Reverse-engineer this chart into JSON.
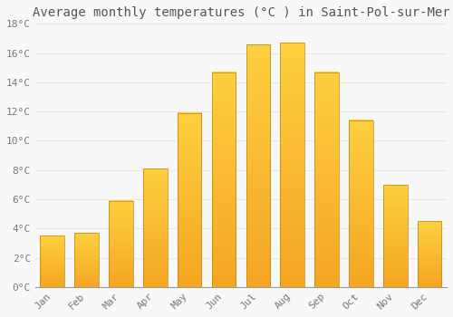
{
  "title": "Average monthly temperatures (°C ) in Saint-Pol-sur-Mer",
  "months": [
    "Jan",
    "Feb",
    "Mar",
    "Apr",
    "May",
    "Jun",
    "Jul",
    "Aug",
    "Sep",
    "Oct",
    "Nov",
    "Dec"
  ],
  "values": [
    3.5,
    3.7,
    5.9,
    8.1,
    11.9,
    14.7,
    16.6,
    16.7,
    14.7,
    11.4,
    7.0,
    4.5
  ],
  "bar_color_bottom": "#F5A623",
  "bar_color_top": "#FFD040",
  "bar_edge_color": "#B8860B",
  "ylim": [
    0,
    18
  ],
  "yticks": [
    0,
    2,
    4,
    6,
    8,
    10,
    12,
    14,
    16,
    18
  ],
  "ytick_labels": [
    "0°C",
    "2°C",
    "4°C",
    "6°C",
    "8°C",
    "10°C",
    "12°C",
    "14°C",
    "16°C",
    "18°C"
  ],
  "background_color": "#f8f8f8",
  "grid_color": "#e8e8e8",
  "title_fontsize": 10,
  "tick_fontsize": 8,
  "bar_width": 0.7
}
